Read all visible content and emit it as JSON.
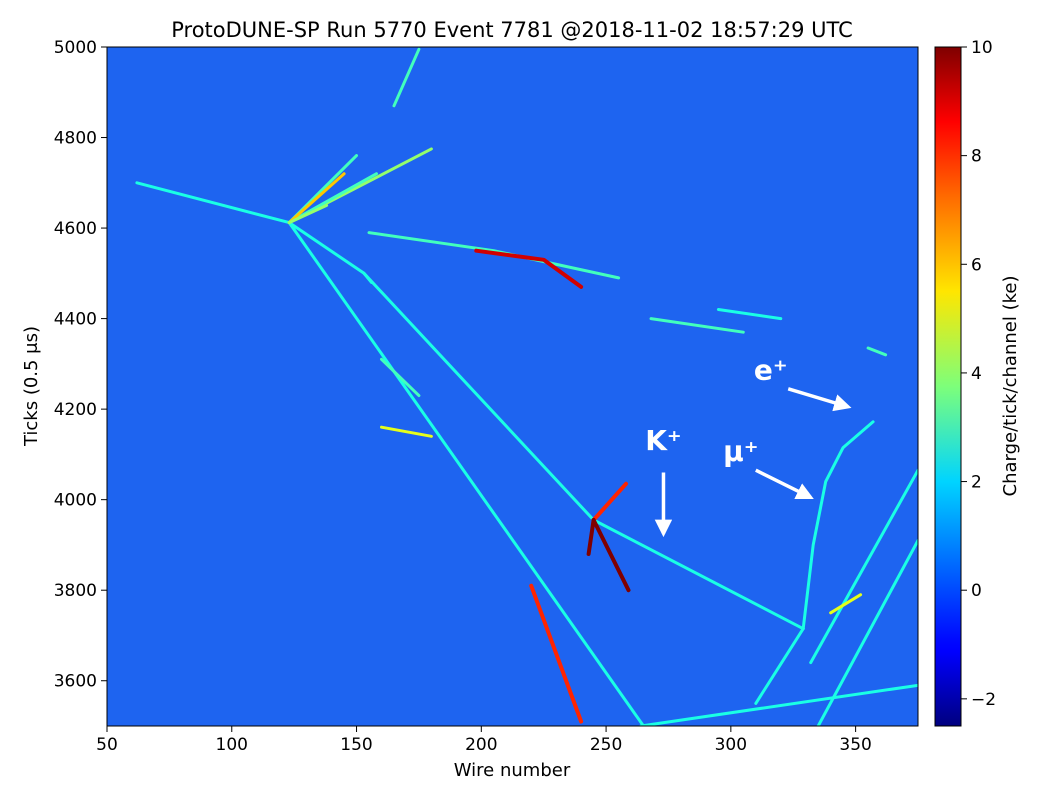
{
  "chart_data": {
    "type": "heatmap",
    "title": "ProtoDUNE-SP Run 5770 Event 7781 @2018-11-02 18:57:29 UTC",
    "xlabel": "Wire number",
    "ylabel": "Ticks (0.5 μs)",
    "xlim": [
      50,
      375
    ],
    "ylim": [
      3500,
      5000
    ],
    "xticks": [
      50,
      100,
      150,
      200,
      250,
      300,
      350
    ],
    "yticks": [
      3600,
      3800,
      4000,
      4200,
      4400,
      4600,
      4800,
      5000
    ],
    "colormap": "jet",
    "background_color": "#1e64f0",
    "colorbar": {
      "label": "Charge/tick/channel (ke)",
      "range": [
        -2.5,
        10
      ],
      "ticks": [
        -2,
        0,
        2,
        4,
        6,
        8,
        10
      ]
    },
    "annotations": [
      {
        "text": "K⁺",
        "label_x": 273,
        "label_y": 4110,
        "arrow_from": [
          273,
          4060
        ],
        "arrow_to": [
          273,
          3925
        ]
      },
      {
        "text": "μ⁺",
        "label_x": 304,
        "label_y": 4085,
        "arrow_from": [
          310,
          4065
        ],
        "arrow_to": [
          332,
          4005
        ]
      },
      {
        "text": "e⁺",
        "label_x": 316,
        "label_y": 4265,
        "arrow_from": [
          323,
          4245
        ],
        "arrow_to": [
          347,
          4205
        ]
      }
    ],
    "tracks": [
      {
        "points": [
          [
            62,
            4700
          ],
          [
            123,
            4612
          ]
        ],
        "value": 2.5
      },
      {
        "points": [
          [
            123,
            4612
          ],
          [
            153,
            4500
          ],
          [
            245,
            3955
          ]
        ],
        "value": 2.5
      },
      {
        "points": [
          [
            123,
            4612
          ],
          [
            265,
            3500
          ]
        ],
        "value": 2.5
      },
      {
        "points": [
          [
            153,
            4500
          ],
          [
            156,
            4480
          ]
        ],
        "value": 2.5
      },
      {
        "points": [
          [
            245,
            3955
          ],
          [
            329,
            3715
          ]
        ],
        "value": 2.5
      },
      {
        "points": [
          [
            245,
            3955
          ],
          [
            258,
            4035
          ]
        ],
        "value": 8
      },
      {
        "points": [
          [
            245,
            3955
          ],
          [
            259,
            3800
          ]
        ],
        "value": 10
      },
      {
        "points": [
          [
            245,
            3955
          ],
          [
            243,
            3880
          ]
        ],
        "value": 10
      },
      {
        "points": [
          [
            310,
            3550
          ],
          [
            329,
            3715
          ]
        ],
        "value": 2.5
      },
      {
        "points": [
          [
            329,
            3715
          ],
          [
            333,
            3900
          ],
          [
            338,
            4040
          ],
          [
            345,
            4115
          ],
          [
            357,
            4172
          ]
        ],
        "value": 2.5
      },
      {
        "points": [
          [
            264,
            3500
          ],
          [
            375,
            3590
          ]
        ],
        "value": 2.5
      },
      {
        "points": [
          [
            335,
            3500
          ],
          [
            375,
            3910
          ]
        ],
        "value": 2.5
      },
      {
        "points": [
          [
            332,
            3640
          ],
          [
            375,
            4065
          ]
        ],
        "value": 2.5
      },
      {
        "points": [
          [
            220,
            3810
          ],
          [
            240,
            3510
          ]
        ],
        "value": 8
      },
      {
        "points": [
          [
            155,
            4590
          ],
          [
            205,
            4550
          ],
          [
            255,
            4490
          ]
        ],
        "value": 3
      },
      {
        "points": [
          [
            198,
            4550
          ],
          [
            225,
            4530
          ],
          [
            240,
            4470
          ]
        ],
        "value": 9
      },
      {
        "points": [
          [
            123,
            4612
          ],
          [
            180,
            4775
          ]
        ],
        "value": 4
      },
      {
        "points": [
          [
            123,
            4612
          ],
          [
            158,
            4720
          ]
        ],
        "value": 3
      },
      {
        "points": [
          [
            123,
            4612
          ],
          [
            150,
            4760
          ]
        ],
        "value": 3
      },
      {
        "points": [
          [
            123,
            4612
          ],
          [
            145,
            4720
          ]
        ],
        "value": 6
      },
      {
        "points": [
          [
            123,
            4612
          ],
          [
            138,
            4650
          ]
        ],
        "value": 4
      },
      {
        "points": [
          [
            165,
            4870
          ],
          [
            175,
            4995
          ]
        ],
        "value": 3
      },
      {
        "points": [
          [
            160,
            4160
          ],
          [
            180,
            4140
          ]
        ],
        "value": 5
      },
      {
        "points": [
          [
            160,
            4310
          ],
          [
            175,
            4230
          ]
        ],
        "value": 3
      },
      {
        "points": [
          [
            268,
            4400
          ],
          [
            305,
            4370
          ]
        ],
        "value": 3
      },
      {
        "points": [
          [
            295,
            4420
          ],
          [
            320,
            4400
          ]
        ],
        "value": 2.5
      },
      {
        "points": [
          [
            355,
            4335
          ],
          [
            362,
            4320
          ]
        ],
        "value": 3
      },
      {
        "points": [
          [
            340,
            3750
          ],
          [
            352,
            3790
          ]
        ],
        "value": 5
      }
    ]
  }
}
